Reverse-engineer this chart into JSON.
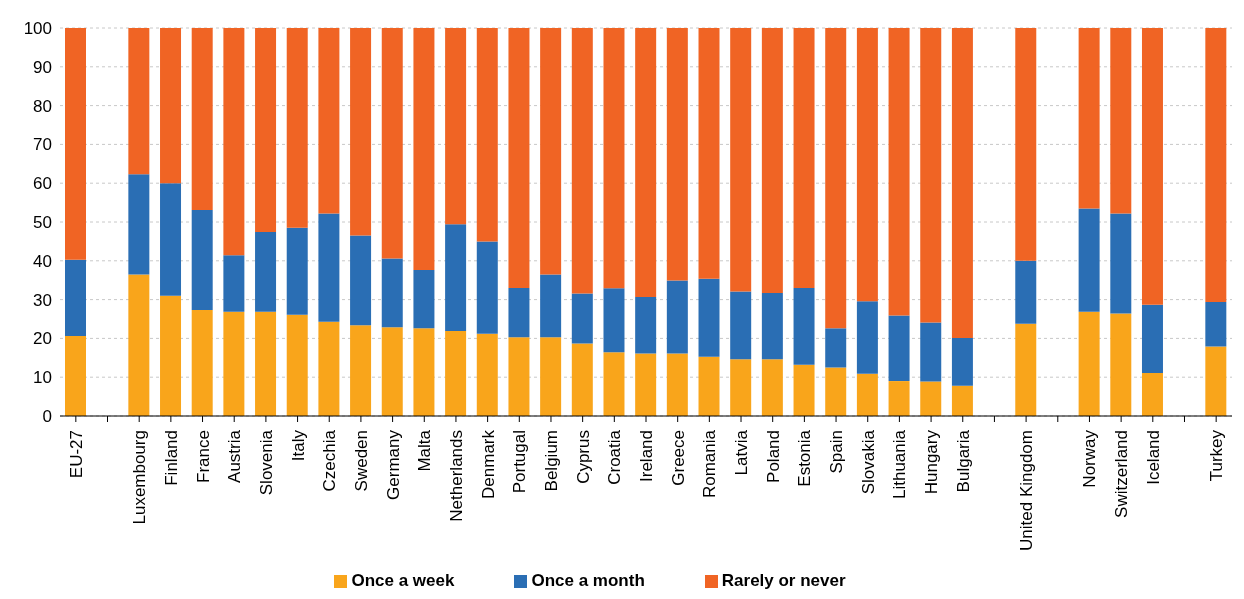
{
  "chart_data": {
    "type": "bar",
    "stacked": true,
    "categories": [
      "EU-27",
      null,
      "Luxembourg",
      "Finland",
      "France",
      "Austria",
      "Slovenia",
      "Italy",
      "Czechia",
      "Sweden",
      "Germany",
      "Malta",
      "Netherlands",
      "Denmark",
      "Portugal",
      "Belgium",
      "Cyprus",
      "Croatia",
      "Ireland",
      "Greece",
      "Romania",
      "Latvia",
      "Poland",
      "Estonia",
      "Spain",
      "Slovakia",
      "Lithuania",
      "Hungary",
      "Bulgaria",
      null,
      "United Kingdom",
      null,
      "Norway",
      "Switzerland",
      "Iceland",
      null,
      "Turkey"
    ],
    "series": [
      {
        "name": "Once a week",
        "color": "#f9a51b",
        "values": [
          20.6,
          null,
          36.5,
          31.0,
          27.3,
          26.9,
          26.9,
          26.1,
          24.3,
          23.4,
          22.9,
          22.6,
          21.9,
          21.2,
          20.3,
          20.3,
          18.7,
          16.4,
          16.1,
          16.1,
          15.3,
          14.6,
          14.6,
          13.2,
          12.5,
          10.9,
          9.0,
          8.9,
          7.8,
          null,
          23.8,
          null,
          26.9,
          26.4,
          11.1,
          null,
          17.9
        ]
      },
      {
        "name": "Once a month",
        "color": "#2a6eb4",
        "values": [
          19.7,
          null,
          25.8,
          29.0,
          25.8,
          14.5,
          20.5,
          22.4,
          27.9,
          23.1,
          17.7,
          15.0,
          27.5,
          23.8,
          12.7,
          16.2,
          12.9,
          16.5,
          14.6,
          18.8,
          20.1,
          17.5,
          17.1,
          19.8,
          10.1,
          18.7,
          16.9,
          15.2,
          12.3,
          null,
          16.2,
          null,
          26.6,
          25.8,
          17.6,
          null,
          11.5
        ]
      },
      {
        "name": "Rarely or never",
        "color": "#f06424",
        "values": [
          59.7,
          null,
          37.7,
          40.0,
          46.9,
          58.6,
          52.6,
          51.5,
          47.8,
          53.5,
          59.4,
          62.4,
          50.6,
          55.0,
          67.0,
          63.5,
          68.4,
          67.1,
          69.3,
          65.1,
          64.6,
          67.9,
          68.3,
          67.0,
          77.4,
          70.4,
          74.1,
          75.9,
          79.9,
          null,
          60.0,
          null,
          46.5,
          47.8,
          71.3,
          null,
          70.6
        ]
      }
    ],
    "ylim": [
      0,
      100
    ],
    "yticks": [
      0,
      10,
      20,
      30,
      40,
      50,
      60,
      70,
      80,
      90,
      100
    ],
    "grid": "y",
    "legend": "bottom"
  }
}
